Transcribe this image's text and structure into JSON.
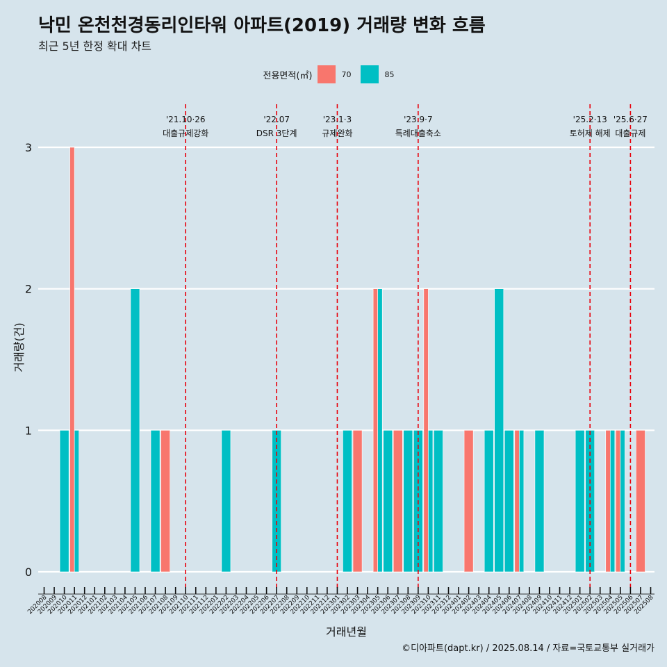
{
  "title": "낙민 온천천경동리인타워 아파트(2019) 거래량 변화 흐름",
  "subtitle": "최근 5년 한정 확대 차트",
  "caption": "©디아파트(dapt.kr) / 2025.08.14 / 자료=국토교통부 실거래가",
  "legend": {
    "title": "전용면적(㎡)",
    "items": [
      {
        "label": "70",
        "color": "#f8766d"
      },
      {
        "label": "85",
        "color": "#00bfc4"
      }
    ]
  },
  "chart_data": {
    "type": "bar",
    "stacking": "dodge",
    "xlabel": "거래년월",
    "ylabel": "거래량(건)",
    "ylim": [
      0,
      3
    ],
    "yticks": [
      0,
      1,
      2,
      3
    ],
    "grid": "horizontal",
    "legend_position": "top",
    "categories": [
      "202008",
      "202009",
      "202010",
      "202011",
      "202012",
      "202101",
      "202102",
      "202103",
      "202104",
      "202105",
      "202106",
      "202107",
      "202108",
      "202109",
      "202110",
      "202111",
      "202112",
      "202201",
      "202202",
      "202203",
      "202204",
      "202205",
      "202206",
      "202207",
      "202208",
      "202209",
      "202210",
      "202211",
      "202212",
      "202301",
      "202302",
      "202303",
      "202304",
      "202305",
      "202306",
      "202307",
      "202308",
      "202309",
      "202310",
      "202311",
      "202312",
      "202401",
      "202402",
      "202403",
      "202404",
      "202405",
      "202406",
      "202407",
      "202408",
      "202409",
      "202410",
      "202411",
      "202412",
      "202501",
      "202502",
      "202503",
      "202504",
      "202505",
      "202506",
      "202507",
      "202508"
    ],
    "series": [
      {
        "name": "70",
        "color": "#f8766d",
        "points": [
          [
            "202011",
            3
          ],
          [
            "202108",
            1
          ],
          [
            "202303",
            1
          ],
          [
            "202305",
            2
          ],
          [
            "202307",
            1
          ],
          [
            "202310",
            2
          ],
          [
            "202402",
            1
          ],
          [
            "202407",
            1
          ],
          [
            "202504",
            1
          ],
          [
            "202505",
            1
          ],
          [
            "202507",
            1
          ]
        ]
      },
      {
        "name": "85",
        "color": "#00bfc4",
        "points": [
          [
            "202010",
            1
          ],
          [
            "202011",
            1
          ],
          [
            "202105",
            2
          ],
          [
            "202107",
            1
          ],
          [
            "202202",
            1
          ],
          [
            "202207",
            1
          ],
          [
            "202302",
            1
          ],
          [
            "202305",
            2
          ],
          [
            "202306",
            1
          ],
          [
            "202308",
            1
          ],
          [
            "202309",
            1
          ],
          [
            "202310",
            1
          ],
          [
            "202311",
            1
          ],
          [
            "202404",
            1
          ],
          [
            "202405",
            2
          ],
          [
            "202406",
            1
          ],
          [
            "202407",
            1
          ],
          [
            "202409",
            1
          ],
          [
            "202501",
            1
          ],
          [
            "202502",
            1
          ],
          [
            "202504",
            1
          ],
          [
            "202505",
            1
          ]
        ]
      }
    ],
    "annotations": [
      {
        "at": "202110",
        "date": "'21.10·26",
        "label": "대출규제강화"
      },
      {
        "at": "202207",
        "date": "'22.07",
        "label": "DSR 3단계"
      },
      {
        "at": "202301",
        "date": "'23.1·3",
        "label": "규제완화"
      },
      {
        "at": "202309",
        "date": "'23.9·7",
        "label": "특례대출축소"
      },
      {
        "at": "202502",
        "date": "'25.2·13",
        "label": "토허제 해제"
      },
      {
        "at": "202506",
        "date": "'25.6·27",
        "label": "대출규제"
      }
    ]
  }
}
